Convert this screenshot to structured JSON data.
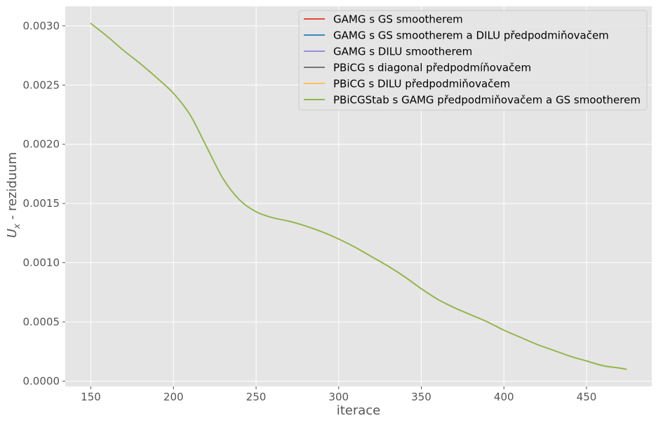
{
  "chart_data": {
    "type": "line",
    "title": "",
    "xlabel": "iterace",
    "ylabel_main": "U",
    "ylabel_sub": "x",
    "ylabel_rest": " - reziduum",
    "xlim": [
      134.5,
      489.5
    ],
    "ylim": [
      -4.5e-05,
      0.003165
    ],
    "xticks": [
      150,
      200,
      250,
      300,
      350,
      400,
      450
    ],
    "xtick_labels": [
      "150",
      "200",
      "250",
      "300",
      "350",
      "400",
      "450"
    ],
    "yticks": [
      0.0,
      0.0005,
      0.001,
      0.0015,
      0.002,
      0.0025,
      0.003
    ],
    "ytick_labels": [
      "0.0000",
      "0.0005",
      "0.0010",
      "0.0015",
      "0.0020",
      "0.0025",
      "0.0030"
    ],
    "grid": true,
    "legend_position": "top-right",
    "x": [
      150,
      160,
      170,
      180,
      190,
      200,
      210,
      220,
      230,
      240,
      250,
      260,
      270,
      280,
      290,
      300,
      310,
      320,
      330,
      340,
      350,
      360,
      370,
      380,
      390,
      400,
      410,
      420,
      430,
      440,
      450,
      460,
      470,
      474
    ],
    "series": [
      {
        "name": "GAMG s GS smootherem",
        "color": "#E24A33",
        "values": [
          0.00302,
          0.00291,
          0.00279,
          0.00268,
          0.00256,
          0.00243,
          0.00225,
          0.00198,
          0.00171,
          0.00153,
          0.00143,
          0.00138,
          0.00135,
          0.00131,
          0.00126,
          0.0012,
          0.00113,
          0.00105,
          0.00097,
          0.00088,
          0.00078,
          0.00069,
          0.00062,
          0.00056,
          0.0005,
          0.00043,
          0.00037,
          0.00031,
          0.00026,
          0.00021,
          0.00017,
          0.00013,
          0.00011,
          0.0001
        ]
      },
      {
        "name": "GAMG s GS smootherem a DILU předpodmiňovačem",
        "color": "#348ABD",
        "values": [
          0.00302,
          0.00291,
          0.00279,
          0.00268,
          0.00256,
          0.00243,
          0.00225,
          0.00198,
          0.00171,
          0.00153,
          0.00143,
          0.00138,
          0.00135,
          0.00131,
          0.00126,
          0.0012,
          0.00113,
          0.00105,
          0.00097,
          0.00088,
          0.00078,
          0.00069,
          0.00062,
          0.00056,
          0.0005,
          0.00043,
          0.00037,
          0.00031,
          0.00026,
          0.00021,
          0.00017,
          0.00013,
          0.00011,
          0.0001
        ]
      },
      {
        "name": "GAMG s DILU smootherem",
        "color": "#988ED5",
        "values": [
          0.00302,
          0.00291,
          0.00279,
          0.00268,
          0.00256,
          0.00243,
          0.00225,
          0.00198,
          0.00171,
          0.00153,
          0.00143,
          0.00138,
          0.00135,
          0.00131,
          0.00126,
          0.0012,
          0.00113,
          0.00105,
          0.00097,
          0.00088,
          0.00078,
          0.00069,
          0.00062,
          0.00056,
          0.0005,
          0.00043,
          0.00037,
          0.00031,
          0.00026,
          0.00021,
          0.00017,
          0.00013,
          0.00011,
          0.0001
        ]
      },
      {
        "name": "PBiCG s diagonal předpodmíňovačem",
        "color": "#777777",
        "values": [
          0.00302,
          0.00291,
          0.00279,
          0.00268,
          0.00256,
          0.00243,
          0.00225,
          0.00198,
          0.00171,
          0.00153,
          0.00143,
          0.00138,
          0.00135,
          0.00131,
          0.00126,
          0.0012,
          0.00113,
          0.00105,
          0.00097,
          0.00088,
          0.00078,
          0.00069,
          0.00062,
          0.00056,
          0.0005,
          0.00043,
          0.00037,
          0.00031,
          0.00026,
          0.00021,
          0.00017,
          0.00013,
          0.00011,
          0.0001
        ]
      },
      {
        "name": "PBiCG s DILU předpodmiňovačem",
        "color": "#FBC15E",
        "values": [
          0.00302,
          0.00291,
          0.00279,
          0.00268,
          0.00256,
          0.00243,
          0.00225,
          0.00198,
          0.00171,
          0.00153,
          0.00143,
          0.00138,
          0.00135,
          0.00131,
          0.00126,
          0.0012,
          0.00113,
          0.00105,
          0.00097,
          0.00088,
          0.00078,
          0.00069,
          0.00062,
          0.00056,
          0.0005,
          0.00043,
          0.00037,
          0.00031,
          0.00026,
          0.00021,
          0.00017,
          0.00013,
          0.00011,
          0.0001
        ]
      },
      {
        "name": "PBiCGStab s GAMG předpodmiňovačem a GS smootherem",
        "color": "#8EBA42",
        "values": [
          0.00302,
          0.00291,
          0.00279,
          0.00268,
          0.00256,
          0.00243,
          0.00225,
          0.00198,
          0.00171,
          0.00153,
          0.00143,
          0.00138,
          0.00135,
          0.00131,
          0.00126,
          0.0012,
          0.00113,
          0.00105,
          0.00097,
          0.00088,
          0.00078,
          0.00069,
          0.00062,
          0.00056,
          0.0005,
          0.00043,
          0.00037,
          0.00031,
          0.00026,
          0.00021,
          0.00017,
          0.00013,
          0.00011,
          0.0001
        ]
      }
    ]
  }
}
